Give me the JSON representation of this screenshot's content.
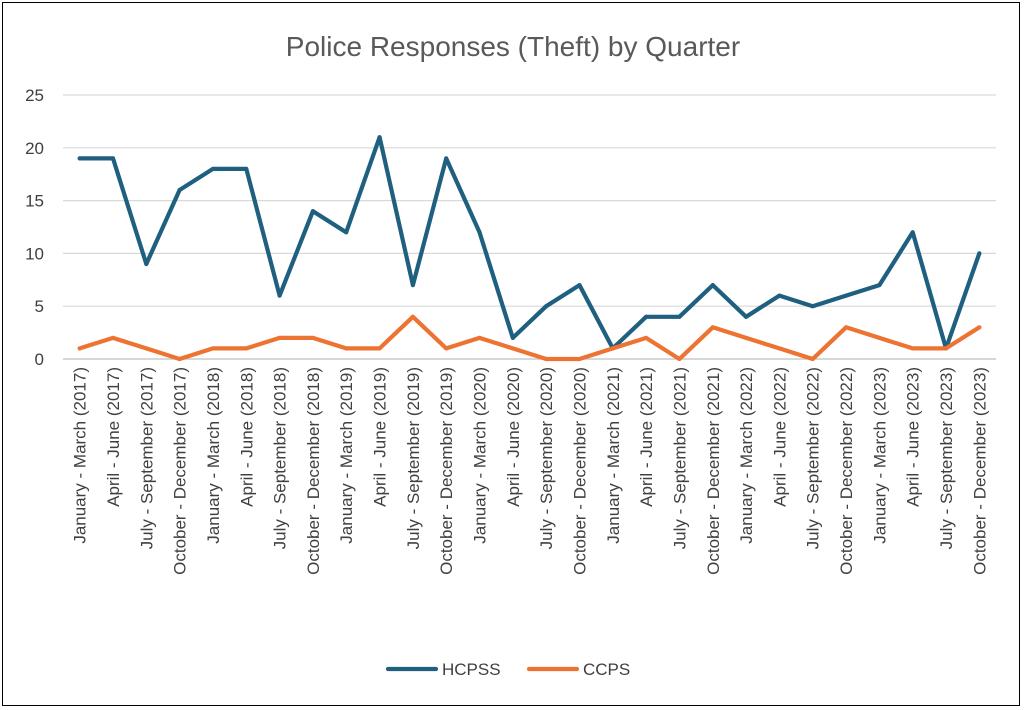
{
  "chart_data": {
    "type": "line",
    "title": "Police Responses (Theft) by Quarter",
    "xlabel": "",
    "ylabel": "",
    "ylim": [
      0,
      25
    ],
    "yticks": [
      0,
      5,
      10,
      15,
      20,
      25
    ],
    "grid": true,
    "legend_position": "bottom",
    "categories": [
      "January - March (2017)",
      "April - June (2017)",
      "July - September (2017)",
      "October - December (2017)",
      "January - March (2018)",
      "April - June (2018)",
      "July - September (2018)",
      "October - December (2018)",
      "January - March (2019)",
      "April - June (2019)",
      "July - September (2019)",
      "October - December (2019)",
      "January - March (2020)",
      "April - June (2020)",
      "July - September (2020)",
      "October - December (2020)",
      "January - March (2021)",
      "April - June (2021)",
      "July - September (2021)",
      "October - December (2021)",
      "January - March (2022)",
      "April - June (2022)",
      "July - September (2022)",
      "October - December (2022)",
      "January - March (2023)",
      "April - June (2023)",
      "July - September (2023)",
      "October - December (2023)"
    ],
    "series": [
      {
        "name": "HCPSS",
        "color": "#1f5f7f",
        "values": [
          19,
          19,
          9,
          16,
          18,
          18,
          6,
          14,
          12,
          21,
          7,
          19,
          12,
          2,
          5,
          7,
          1,
          4,
          4,
          7,
          4,
          6,
          5,
          6,
          7,
          12,
          1,
          10
        ]
      },
      {
        "name": "CCPS",
        "color": "#ed7332",
        "values": [
          1,
          2,
          1,
          0,
          1,
          1,
          2,
          2,
          1,
          1,
          4,
          1,
          2,
          1,
          0,
          0,
          1,
          2,
          0,
          3,
          2,
          1,
          0,
          3,
          2,
          1,
          1,
          3
        ]
      }
    ]
  }
}
